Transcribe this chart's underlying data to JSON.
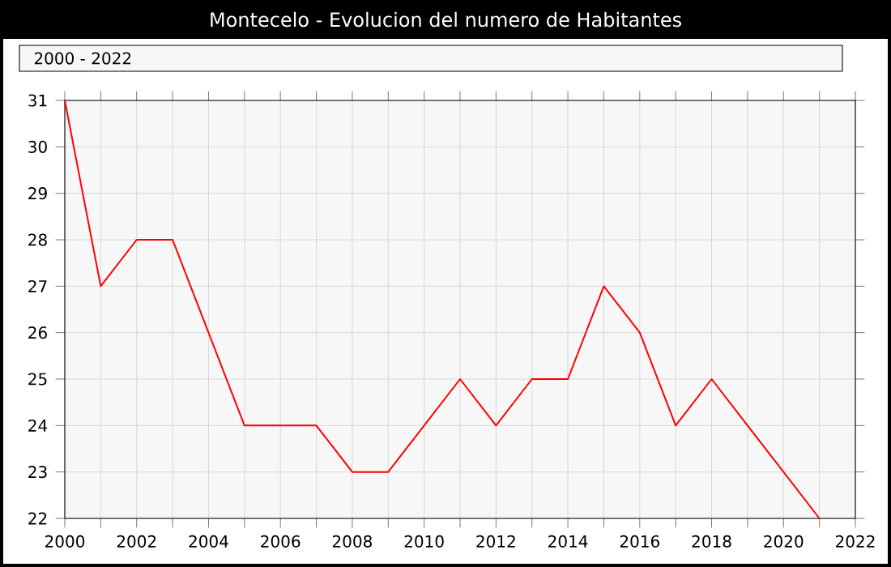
{
  "chart_data": {
    "type": "line",
    "title": "Montecelo - Evolucion del numero de Habitantes",
    "subtitle": "2000 - 2022",
    "x": [
      2000,
      2001,
      2002,
      2003,
      2004,
      2005,
      2006,
      2007,
      2008,
      2009,
      2010,
      2011,
      2012,
      2013,
      2014,
      2015,
      2016,
      2017,
      2018,
      2019,
      2020,
      2021
    ],
    "series": [
      {
        "color": "#ff0000",
        "values": [
          31,
          27,
          28,
          28,
          26,
          24,
          24,
          24,
          23,
          23,
          24,
          25,
          24,
          25,
          25,
          27,
          26,
          24,
          25,
          24,
          23,
          22
        ]
      }
    ],
    "xlim": [
      2000,
      2022
    ],
    "xticks": [
      2000,
      {
        "value": 2001,
        "label": null
      },
      2002,
      {
        "value": 2003,
        "label": null
      },
      2004,
      {
        "value": 2005,
        "label": null
      },
      2006,
      {
        "value": 2007,
        "label": null
      },
      2008,
      {
        "value": 2009,
        "label": null
      },
      2010,
      {
        "value": 2011,
        "label": null
      },
      2012,
      {
        "value": 2013,
        "label": null
      },
      2014,
      {
        "value": 2015,
        "label": null
      },
      2016,
      {
        "value": 2017,
        "label": null
      },
      2018,
      {
        "value": 2019,
        "label": null
      },
      2020,
      {
        "value": 2021,
        "label": null
      },
      2022
    ],
    "ylim": [
      22,
      31
    ],
    "yticks": [
      22,
      23,
      24,
      25,
      26,
      27,
      28,
      29,
      30,
      31
    ],
    "grid": true,
    "marker": "none",
    "line_style": "solid"
  }
}
